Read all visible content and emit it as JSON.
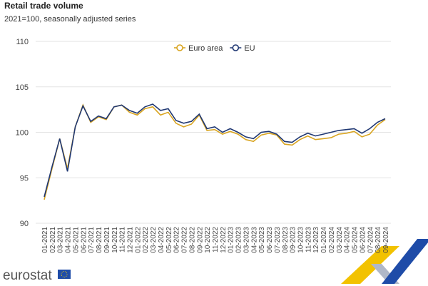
{
  "chart_data": {
    "type": "line",
    "title": "Retail trade volume",
    "subtitle": "2021=100, seasonally adjusted series",
    "categories": [
      "01-2021",
      "02-2021",
      "03-2021",
      "04-2021",
      "05-2021",
      "06-2021",
      "07-2021",
      "08-2021",
      "09-2021",
      "10-2021",
      "11-2021",
      "12-2021",
      "01-2022",
      "02-2022",
      "03-2022",
      "04-2022",
      "05-2022",
      "06-2022",
      "07-2022",
      "08-2022",
      "09-2022",
      "10-2022",
      "11-2022",
      "12-2022",
      "01-2023",
      "02-2023",
      "03-2023",
      "04-2023",
      "05-2023",
      "06-2023",
      "07-2023",
      "08-2023",
      "09-2023",
      "10-2023",
      "11-2023",
      "12-2023",
      "01-2024",
      "02-2024",
      "03-2024",
      "04-2024",
      "05-2024",
      "06-2024",
      "07-2024",
      "08-2024",
      "09-2024"
    ],
    "series": [
      {
        "name": "Euro area",
        "color": "#d9a521",
        "values": [
          92.6,
          96.0,
          99.3,
          96.0,
          100.6,
          103.0,
          101.1,
          101.7,
          101.4,
          102.8,
          103.0,
          102.2,
          101.9,
          102.6,
          102.8,
          101.9,
          102.2,
          101.0,
          100.6,
          100.9,
          101.9,
          100.2,
          100.3,
          99.8,
          100.1,
          99.8,
          99.2,
          99.0,
          99.7,
          99.9,
          99.7,
          98.7,
          98.6,
          99.2,
          99.6,
          99.2,
          99.3,
          99.4,
          99.8,
          99.9,
          100.1,
          99.5,
          99.8,
          100.8,
          101.4
        ]
      },
      {
        "name": "EU",
        "color": "#1f3772",
        "values": [
          92.9,
          96.2,
          99.3,
          95.7,
          100.6,
          102.9,
          101.2,
          101.8,
          101.5,
          102.8,
          103.0,
          102.4,
          102.1,
          102.8,
          103.1,
          102.4,
          102.6,
          101.3,
          101.0,
          101.2,
          102.0,
          100.4,
          100.6,
          100.0,
          100.4,
          100.0,
          99.5,
          99.3,
          100.0,
          100.1,
          99.8,
          99.0,
          98.9,
          99.5,
          99.9,
          99.6,
          99.8,
          100.0,
          100.2,
          100.3,
          100.4,
          99.9,
          100.4,
          101.1,
          101.5
        ]
      }
    ],
    "ylim": [
      90,
      110
    ],
    "yticks": [
      90,
      95,
      100,
      105,
      110
    ],
    "grid": true,
    "legend": "top"
  },
  "brand": "eurostat"
}
